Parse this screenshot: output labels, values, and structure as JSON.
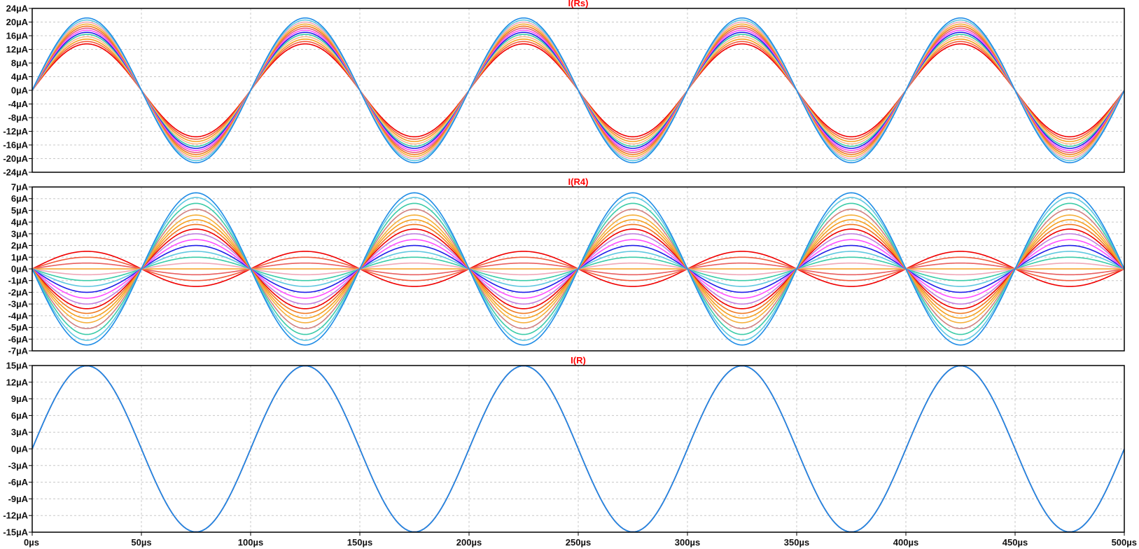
{
  "chart_data": [
    {
      "type": "line",
      "title": "I(Rs)",
      "title_color": "#ff0000",
      "ylim": [
        -24,
        24
      ],
      "yticks": [
        {
          "value": 24,
          "label": "24µA"
        },
        {
          "value": 20,
          "label": "20µA"
        },
        {
          "value": 16,
          "label": "16µA"
        },
        {
          "value": 12,
          "label": "12µA"
        },
        {
          "value": 8,
          "label": "8µA"
        },
        {
          "value": 4,
          "label": "4µA"
        },
        {
          "value": 0,
          "label": "0µA"
        },
        {
          "value": -4,
          "label": "-4µA"
        },
        {
          "value": -8,
          "label": "-8µA"
        },
        {
          "value": -12,
          "label": "-12µA"
        },
        {
          "value": -16,
          "label": "-16µA"
        },
        {
          "value": -20,
          "label": "-20µA"
        },
        {
          "value": -24,
          "label": "-24µA"
        }
      ],
      "grid": true,
      "waveform": {
        "shape": "sine",
        "period_us": 100,
        "phase_deg": 0,
        "start_us": 0,
        "end_us": 500
      },
      "series": [
        {
          "amplitude": 13.6,
          "color": "#f00000"
        },
        {
          "amplitude": 14.3,
          "color": "#f25a3c"
        },
        {
          "amplitude": 15.0,
          "color": "#f5a020"
        },
        {
          "amplitude": 15.7,
          "color": "#fbb88c"
        },
        {
          "amplitude": 16.4,
          "color": "#3ccca8"
        },
        {
          "amplitude": 17.0,
          "color": "#2020e8"
        },
        {
          "amplitude": 17.6,
          "color": "#ff50ff"
        },
        {
          "amplitude": 18.2,
          "color": "#e85a80"
        },
        {
          "amplitude": 18.8,
          "color": "#f07820"
        },
        {
          "amplitude": 19.4,
          "color": "#f5b03c"
        },
        {
          "amplitude": 20.0,
          "color": "#f0a8b8"
        },
        {
          "amplitude": 20.6,
          "color": "#60c8e0"
        },
        {
          "amplitude": 21.2,
          "color": "#1e8ce6"
        }
      ]
    },
    {
      "type": "line",
      "title": "I(R4)",
      "title_color": "#ff0000",
      "ylim": [
        -7,
        7
      ],
      "yticks": [
        {
          "value": 7,
          "label": "7µA"
        },
        {
          "value": 6,
          "label": "6µA"
        },
        {
          "value": 5,
          "label": "5µA"
        },
        {
          "value": 4,
          "label": "4µA"
        },
        {
          "value": 3,
          "label": "3µA"
        },
        {
          "value": 2,
          "label": "2µA"
        },
        {
          "value": 1,
          "label": "1µA"
        },
        {
          "value": 0,
          "label": "0µA"
        },
        {
          "value": -1,
          "label": "-1µA"
        },
        {
          "value": -2,
          "label": "-2µA"
        },
        {
          "value": -3,
          "label": "-3µA"
        },
        {
          "value": -4,
          "label": "-4µA"
        },
        {
          "value": -5,
          "label": "-5µA"
        },
        {
          "value": -6,
          "label": "-6µA"
        },
        {
          "value": -7,
          "label": "-7µA"
        }
      ],
      "grid": true,
      "waveform": {
        "shape": "abs-sine",
        "period_us": 100,
        "phase_deg": 0,
        "start_us": 0,
        "end_us": 500
      },
      "series": [
        {
          "amplitude": -1.5,
          "color": "#f00000"
        },
        {
          "amplitude": -1.0,
          "color": "#f25a3c"
        },
        {
          "amplitude": -0.5,
          "color": "#e86060"
        },
        {
          "amplitude": 0.0,
          "color": "#f5a020"
        },
        {
          "amplitude": 0.5,
          "color": "#f0a8b8"
        },
        {
          "amplitude": 1.0,
          "color": "#3ccca8"
        },
        {
          "amplitude": 1.5,
          "color": "#60c8e0"
        },
        {
          "amplitude": 2.0,
          "color": "#2020e8"
        },
        {
          "amplitude": 2.5,
          "color": "#ff50ff"
        },
        {
          "amplitude": 3.0,
          "color": "#c080e0"
        },
        {
          "amplitude": 3.4,
          "color": "#f00000"
        },
        {
          "amplitude": 3.8,
          "color": "#f07820"
        },
        {
          "amplitude": 4.2,
          "color": "#f5a020"
        },
        {
          "amplitude": 4.6,
          "color": "#f5b03c"
        },
        {
          "amplitude": 5.1,
          "color": "#d08080"
        },
        {
          "amplitude": 5.6,
          "color": "#3ccca8"
        },
        {
          "amplitude": 6.1,
          "color": "#60c8e0"
        },
        {
          "amplitude": 6.5,
          "color": "#1e8ce6"
        }
      ]
    },
    {
      "type": "line",
      "title": "I(R)",
      "title_color": "#ff0000",
      "ylim": [
        -15,
        15
      ],
      "yticks": [
        {
          "value": 15,
          "label": "15µA"
        },
        {
          "value": 12,
          "label": "12µA"
        },
        {
          "value": 9,
          "label": "9µA"
        },
        {
          "value": 6,
          "label": "6µA"
        },
        {
          "value": 3,
          "label": "3µA"
        },
        {
          "value": 0,
          "label": "0µA"
        },
        {
          "value": -3,
          "label": "-3µA"
        },
        {
          "value": -6,
          "label": "-6µA"
        },
        {
          "value": -9,
          "label": "-9µA"
        },
        {
          "value": -12,
          "label": "-12µA"
        },
        {
          "value": -15,
          "label": "-15µA"
        }
      ],
      "grid": true,
      "waveform": {
        "shape": "sine",
        "period_us": 100,
        "phase_deg": 0,
        "start_us": 0,
        "end_us": 500
      },
      "series": [
        {
          "amplitude": 14.95,
          "color": "#f00000"
        },
        {
          "amplitude": 14.95,
          "color": "#f5a020"
        },
        {
          "amplitude": 14.95,
          "color": "#2020e8"
        },
        {
          "amplitude": 14.95,
          "color": "#1e8ce6"
        }
      ]
    }
  ],
  "x_axis": {
    "xlim": [
      0,
      500
    ],
    "unit": "µs",
    "ticks": [
      {
        "value": 0,
        "label": "0µs"
      },
      {
        "value": 50,
        "label": "50µs"
      },
      {
        "value": 100,
        "label": "100µs"
      },
      {
        "value": 150,
        "label": "150µs"
      },
      {
        "value": 200,
        "label": "200µs"
      },
      {
        "value": 250,
        "label": "250µs"
      },
      {
        "value": 300,
        "label": "300µs"
      },
      {
        "value": 350,
        "label": "350µs"
      },
      {
        "value": 400,
        "label": "400µs"
      },
      {
        "value": 450,
        "label": "450µs"
      },
      {
        "value": 500,
        "label": "500µs"
      }
    ]
  }
}
